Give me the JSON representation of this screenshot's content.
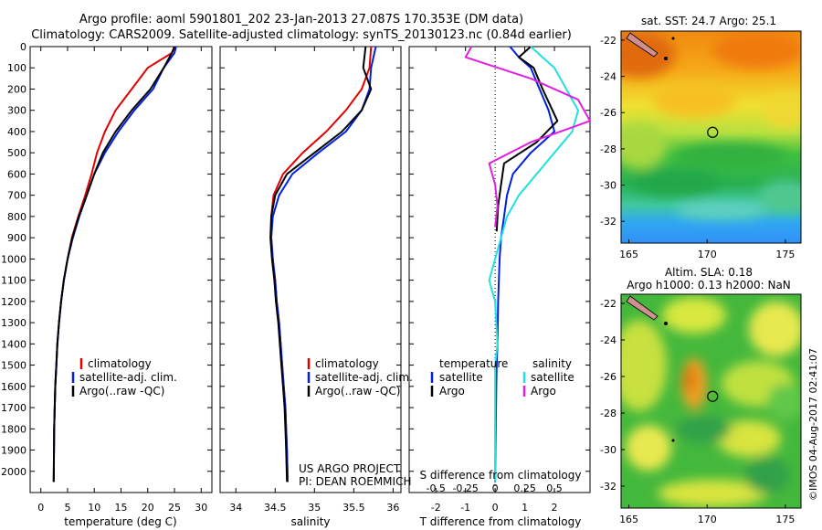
{
  "title_line1": "Argo profile: aoml 5901801_202 23-Jan-2013 27.087S 170.353E (DM data)",
  "title_line2": "Climatology: CARS2009. Satellite-adjusted climatology: synTS_20130123.nc (0.84d earlier)",
  "colors": {
    "climatology": "#e00000",
    "satellite": "#0020e0",
    "argo": "#000000",
    "sat_salinity": "#20e0e0",
    "argo_salinity": "#e020e0"
  },
  "chart_data": [
    {
      "type": "line",
      "id": "temperature",
      "xlabel": "temperature (deg C)",
      "xlim": [
        -2,
        32
      ],
      "ylim": [
        2100,
        0
      ],
      "xticks": [
        0,
        5,
        10,
        15,
        20,
        25,
        30
      ],
      "yticks": [
        0,
        100,
        200,
        300,
        400,
        500,
        600,
        700,
        800,
        900,
        1000,
        1100,
        1200,
        1300,
        1400,
        1500,
        1600,
        1700,
        1800,
        1900,
        2000
      ],
      "legend": [
        "climatology",
        "satellite-adj. clim.",
        "Argo(..raw -QC)"
      ],
      "series": [
        {
          "name": "climatology",
          "color": "#e00000",
          "x": [
            25.2,
            24.5,
            20,
            17,
            14,
            12,
            10.5,
            9.5,
            8.3,
            7,
            5.8,
            5,
            4.3,
            3.8,
            3.4,
            3.1,
            2.9,
            2.7,
            2.6,
            2.5,
            2.4
          ],
          "y": [
            0,
            30,
            100,
            200,
            300,
            400,
            500,
            600,
            700,
            800,
            900,
            1000,
            1100,
            1200,
            1300,
            1400,
            1500,
            1600,
            1700,
            1800,
            2050
          ]
        },
        {
          "name": "satellite-adj. clim.",
          "color": "#0020e0",
          "x": [
            25.3,
            25,
            23,
            21,
            17.5,
            14.5,
            12,
            10,
            8.6,
            7.2,
            6,
            5,
            4.3,
            3.8,
            3.4,
            3.1,
            2.9,
            2.7,
            2.6,
            2.5,
            2.4
          ],
          "y": [
            0,
            30,
            100,
            200,
            300,
            400,
            500,
            600,
            700,
            800,
            900,
            1000,
            1100,
            1200,
            1300,
            1400,
            1500,
            1600,
            1700,
            1800,
            2050
          ]
        },
        {
          "name": "Argo(..raw -QC)",
          "color": "#000000",
          "x": [
            25,
            24.5,
            23,
            20.5,
            17,
            14,
            11.6,
            10,
            8.6,
            7.1,
            5.9,
            5,
            4.3,
            3.8,
            3.4,
            3.1,
            2.9,
            2.7,
            2.6,
            2.5,
            2.4
          ],
          "y": [
            0,
            30,
            100,
            200,
            300,
            400,
            500,
            600,
            700,
            800,
            900,
            1000,
            1100,
            1200,
            1300,
            1400,
            1500,
            1600,
            1700,
            1800,
            2050
          ]
        }
      ]
    },
    {
      "type": "line",
      "id": "salinity",
      "xlabel": "salinity",
      "xlim": [
        33.8,
        36.1
      ],
      "ylim": [
        2100,
        0
      ],
      "xticks": [
        34,
        34.5,
        35,
        35.5,
        36
      ],
      "legend": [
        "climatology",
        "satellite-adj. clim.",
        "Argo(..raw -QC)"
      ],
      "series": [
        {
          "name": "climatology",
          "color": "#e00000",
          "x": [
            35.72,
            35.7,
            35.6,
            35.4,
            35.15,
            34.85,
            34.6,
            34.48,
            34.45,
            34.45,
            34.47,
            34.5,
            34.52,
            34.55,
            34.57,
            34.59,
            34.61,
            34.63,
            34.64,
            34.65,
            34.66
          ],
          "y": [
            0,
            100,
            200,
            300,
            400,
            500,
            600,
            700,
            800,
            900,
            1000,
            1100,
            1200,
            1300,
            1400,
            1500,
            1600,
            1700,
            1800,
            1900,
            2050
          ]
        },
        {
          "name": "satellite-adj. clim.",
          "color": "#0020e0",
          "x": [
            35.78,
            35.72,
            35.7,
            35.6,
            35.4,
            35.05,
            34.72,
            34.55,
            34.47,
            34.45,
            34.47,
            34.5,
            34.52,
            34.55,
            34.57,
            34.59,
            34.61,
            34.63,
            34.64,
            34.65,
            34.66
          ],
          "y": [
            0,
            100,
            200,
            300,
            400,
            500,
            600,
            700,
            800,
            900,
            1000,
            1100,
            1200,
            1300,
            1400,
            1500,
            1600,
            1700,
            1800,
            1900,
            2050
          ]
        },
        {
          "name": "Argo(..raw -QC)",
          "color": "#000000",
          "x": [
            35.65,
            35.62,
            35.72,
            35.6,
            35.35,
            35,
            34.65,
            34.5,
            34.45,
            34.44,
            34.46,
            34.49,
            34.51,
            34.54,
            34.56,
            34.58,
            34.6,
            34.62,
            34.63,
            34.64,
            34.65
          ],
          "y": [
            0,
            100,
            200,
            300,
            400,
            500,
            600,
            700,
            800,
            900,
            1000,
            1100,
            1200,
            1300,
            1400,
            1500,
            1600,
            1700,
            1800,
            1900,
            2050
          ]
        }
      ]
    },
    {
      "type": "line",
      "id": "differences",
      "xlabel": "T difference from climatology",
      "xlabel2": "S difference from climatology",
      "xlim": [
        -2.9,
        3.2
      ],
      "xticks": [
        -2,
        -1,
        0,
        1,
        2
      ],
      "xticks2": [
        -0.5,
        -0.25,
        0,
        0.25,
        0.5
      ],
      "ylim": [
        2100,
        0
      ],
      "legend_temperature_title": "temperature",
      "legend_salinity_title": "salinity",
      "legend_temperature": [
        "satellite",
        "Argo"
      ],
      "legend_salinity": [
        "satellite",
        "Argo"
      ],
      "series": [
        {
          "name": "satellite",
          "group": "temperature",
          "color": "#0020e0",
          "x": [
            0.5,
            0.8,
            1.2,
            1.5,
            1.8,
            2.0,
            1.2,
            0.6,
            0.4,
            0.3,
            0.2,
            0.15,
            0.1,
            0.08,
            0.05,
            0.04,
            0.03,
            0.02,
            0.01,
            0.0
          ],
          "y": [
            0,
            50,
            100,
            200,
            300,
            400,
            500,
            600,
            700,
            800,
            900,
            1000,
            1200,
            1400,
            1500,
            1600,
            1700,
            1800,
            1900,
            2050
          ]
        },
        {
          "name": "Argo",
          "group": "temperature",
          "color": "#000000",
          "x": [
            1.2,
            0.8,
            1.3,
            1.6,
            2.1,
            1.4,
            0.3,
            0.2,
            0.1,
            0.05
          ],
          "y": [
            0,
            50,
            100,
            200,
            350,
            450,
            550,
            650,
            750,
            870
          ]
        },
        {
          "name": "satellite",
          "group": "salinity",
          "color": "#20e0e0",
          "x": [
            0.3,
            0.5,
            0.6,
            0.7,
            0.65,
            0.5,
            0.35,
            0.2,
            0.1,
            0.05,
            0.0,
            -0.05,
            0.0,
            0.02,
            0.0,
            0.0,
            0.0,
            0.0,
            0.0
          ],
          "y": [
            0,
            100,
            200,
            300,
            400,
            500,
            600,
            700,
            800,
            900,
            1000,
            1100,
            1200,
            1400,
            1500,
            1600,
            1700,
            1800,
            2050
          ]
        },
        {
          "name": "Argo",
          "group": "salinity",
          "color": "#e020e0",
          "x": [
            -0.2,
            -0.25,
            0.3,
            0.7,
            0.8,
            0.3,
            -0.05,
            0.0,
            0.02,
            0.0
          ],
          "y": [
            0,
            50,
            150,
            250,
            350,
            450,
            550,
            650,
            750,
            850
          ]
        }
      ]
    },
    {
      "type": "heatmap",
      "id": "sst-map",
      "title": "sat. SST: 24.7 Argo: 25.1",
      "xlim": [
        164.5,
        176
      ],
      "ylim": [
        -33.2,
        -21.5
      ],
      "xticks": [
        165,
        170,
        175
      ],
      "yticks": [
        -22,
        -24,
        -26,
        -28,
        -30,
        -32
      ],
      "profile_location": {
        "lon": 170.353,
        "lat": -27.087
      }
    },
    {
      "type": "heatmap",
      "id": "sla-map",
      "title_line1": "Altim. SLA: 0.18",
      "title_line2": "Argo h1000: 0.13 h2000: NaN",
      "xlim": [
        164.5,
        176
      ],
      "ylim": [
        -33.2,
        -21.5
      ],
      "xticks": [
        165,
        170,
        175
      ],
      "yticks": [
        -22,
        -24,
        -26,
        -28,
        -30,
        -32
      ],
      "profile_location": {
        "lon": 170.353,
        "lat": -27.087
      }
    }
  ],
  "footer_left_line1": "US ARGO PROJECT",
  "footer_left_line2": "PI: DEAN ROEMMICH",
  "credit": "©IMOS 04-Aug-2017 02:41:07"
}
